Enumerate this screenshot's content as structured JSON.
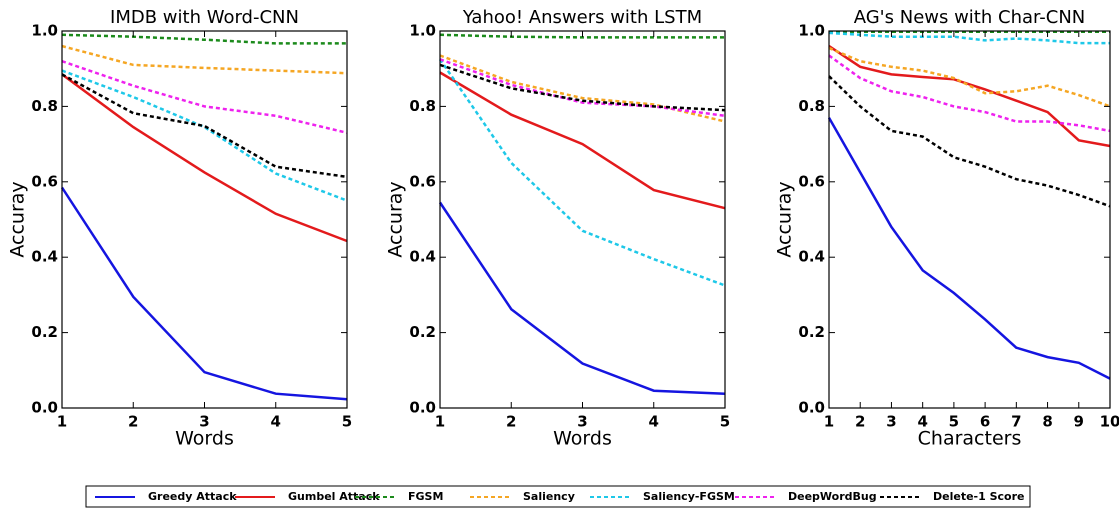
{
  "legend": [
    {
      "name": "Greedy Attack",
      "color": "#1515e0",
      "style": "solid"
    },
    {
      "name": "Gumbel Attack",
      "color": "#e31a1c",
      "style": "solid"
    },
    {
      "name": "FGSM",
      "color": "#1b8a1b",
      "style": "dashed"
    },
    {
      "name": "Saliency",
      "color": "#f5a623",
      "style": "dashed"
    },
    {
      "name": "Saliency-FGSM",
      "color": "#1ec8e8",
      "style": "dashed"
    },
    {
      "name": "DeepWordBug",
      "color": "#ee22ee",
      "style": "dashed"
    },
    {
      "name": "Delete-1 Score",
      "color": "#000000",
      "style": "dashed"
    }
  ],
  "chart_data": [
    {
      "type": "line",
      "title": "IMDB with Word-CNN",
      "x_label": "Words",
      "y_label": "Accuray",
      "x": [
        1,
        2,
        3,
        4,
        5
      ],
      "xlim": [
        1,
        5
      ],
      "xticks": [
        1,
        2,
        3,
        4,
        5
      ],
      "ylim": [
        0,
        1
      ],
      "yticks": [
        {
          "value": 0,
          "label": "0.0"
        },
        0.2,
        0.4,
        0.6,
        0.8,
        {
          "value": 1,
          "label": "1.0"
        }
      ],
      "series": [
        {
          "values": [
            0.585,
            0.295,
            0.095,
            0.038,
            0.023
          ]
        },
        {
          "values": [
            0.885,
            0.745,
            0.625,
            0.515,
            0.443
          ]
        },
        {
          "values": [
            0.99,
            0.985,
            0.977,
            0.967,
            0.967
          ]
        },
        {
          "values": [
            0.96,
            0.91,
            0.902,
            0.895,
            0.888
          ]
        },
        {
          "values": [
            0.895,
            0.825,
            0.745,
            0.622,
            0.55
          ]
        },
        {
          "values": [
            0.92,
            0.855,
            0.8,
            0.775,
            0.73
          ]
        },
        {
          "values": [
            0.885,
            0.782,
            0.748,
            0.64,
            0.613
          ]
        }
      ]
    },
    {
      "type": "line",
      "title": "Yahoo! Answers with LSTM",
      "x_label": "Words",
      "y_label": "Accuray",
      "x": [
        1,
        2,
        3,
        4,
        5
      ],
      "xlim": [
        1,
        5
      ],
      "xticks": [
        1,
        2,
        3,
        4,
        5
      ],
      "ylim": [
        0,
        1
      ],
      "yticks": [
        {
          "value": 0,
          "label": "0.0"
        },
        0.2,
        0.4,
        0.6,
        0.8,
        {
          "value": 1,
          "label": "1.0"
        }
      ],
      "series": [
        {
          "values": [
            0.545,
            0.262,
            0.118,
            0.046,
            0.038
          ]
        },
        {
          "values": [
            0.89,
            0.778,
            0.7,
            0.578,
            0.53
          ]
        },
        {
          "values": [
            0.99,
            0.985,
            0.983,
            0.983,
            0.983
          ]
        },
        {
          "values": [
            0.935,
            0.865,
            0.822,
            0.805,
            0.76
          ]
        },
        {
          "values": [
            0.925,
            0.65,
            0.47,
            0.395,
            0.325
          ]
        },
        {
          "values": [
            0.925,
            0.857,
            0.81,
            0.8,
            0.775
          ]
        },
        {
          "values": [
            0.91,
            0.848,
            0.815,
            0.8,
            0.79
          ]
        }
      ]
    },
    {
      "type": "line",
      "title": "AG's News with Char-CNN",
      "x_label": "Characters",
      "y_label": "Accuray",
      "x": [
        1,
        2,
        3,
        4,
        5,
        6,
        7,
        8,
        9,
        10
      ],
      "xlim": [
        1,
        10
      ],
      "xticks": [
        1,
        2,
        3,
        4,
        5,
        6,
        7,
        8,
        9,
        10
      ],
      "ylim": [
        0,
        1
      ],
      "yticks": [
        {
          "value": 0,
          "label": "0.0"
        },
        0.2,
        0.4,
        0.6,
        0.8,
        {
          "value": 1,
          "label": "1.0"
        }
      ],
      "series": [
        {
          "values": [
            0.77,
            0.625,
            0.48,
            0.365,
            0.305,
            0.235,
            0.16,
            0.135,
            0.12,
            0.078
          ]
        },
        {
          "values": [
            0.96,
            0.905,
            0.885,
            0.878,
            0.872,
            0.845,
            0.815,
            0.785,
            0.71,
            0.695
          ]
        },
        {
          "values": [
            0.998,
            0.998,
            0.998,
            0.998,
            0.998,
            0.998,
            0.998,
            0.998,
            0.998,
            0.998
          ]
        },
        {
          "values": [
            0.955,
            0.92,
            0.905,
            0.895,
            0.875,
            0.835,
            0.84,
            0.855,
            0.83,
            0.8
          ]
        },
        {
          "values": [
            0.995,
            0.99,
            0.985,
            0.985,
            0.985,
            0.975,
            0.98,
            0.975,
            0.968,
            0.968
          ]
        },
        {
          "values": [
            0.935,
            0.875,
            0.84,
            0.825,
            0.8,
            0.785,
            0.76,
            0.76,
            0.75,
            0.735
          ]
        },
        {
          "values": [
            0.88,
            0.8,
            0.735,
            0.72,
            0.665,
            0.64,
            0.607,
            0.59,
            0.565,
            0.535
          ]
        }
      ]
    }
  ]
}
